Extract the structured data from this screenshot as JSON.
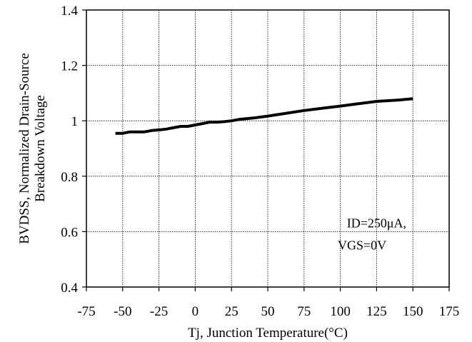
{
  "chart_data": {
    "type": "line",
    "xlabel": "Tj, Junction Temperature(°C)",
    "ylabel_line1": "BVDSS, Normalized Drain-Source",
    "ylabel_line2": "Breakdown Voltage",
    "xlim": [
      -75,
      175
    ],
    "ylim": [
      0.4,
      1.4
    ],
    "x_ticks": [
      -75,
      -50,
      -25,
      0,
      25,
      50,
      75,
      100,
      125,
      150,
      175
    ],
    "x_tick_labels": [
      "-75",
      "-50",
      "-25",
      "0",
      "25",
      "50",
      "75",
      "100",
      "125",
      "150",
      "175"
    ],
    "y_ticks": [
      0.4,
      0.6,
      0.8,
      1.0,
      1.2,
      1.4
    ],
    "y_tick_labels": [
      "0.4",
      "0.6",
      "0.8",
      "1",
      "1.2",
      "1.4"
    ],
    "grid": true,
    "annotation": [
      "ID=250μA,",
      "VGS=0V"
    ],
    "series": [
      {
        "color": "#000000",
        "x": [
          -55,
          -50,
          -45,
          -40,
          -35,
          -30,
          -25,
          -20,
          -15,
          -10,
          -5,
          0,
          5,
          10,
          15,
          20,
          25,
          30,
          40,
          50,
          60,
          75,
          90,
          100,
          110,
          125,
          140,
          150
        ],
        "y": [
          0.955,
          0.955,
          0.96,
          0.96,
          0.96,
          0.965,
          0.967,
          0.97,
          0.975,
          0.98,
          0.98,
          0.985,
          0.99,
          0.995,
          0.995,
          0.997,
          1.0,
          1.005,
          1.01,
          1.017,
          1.025,
          1.037,
          1.047,
          1.053,
          1.06,
          1.07,
          1.075,
          1.08
        ]
      }
    ]
  }
}
